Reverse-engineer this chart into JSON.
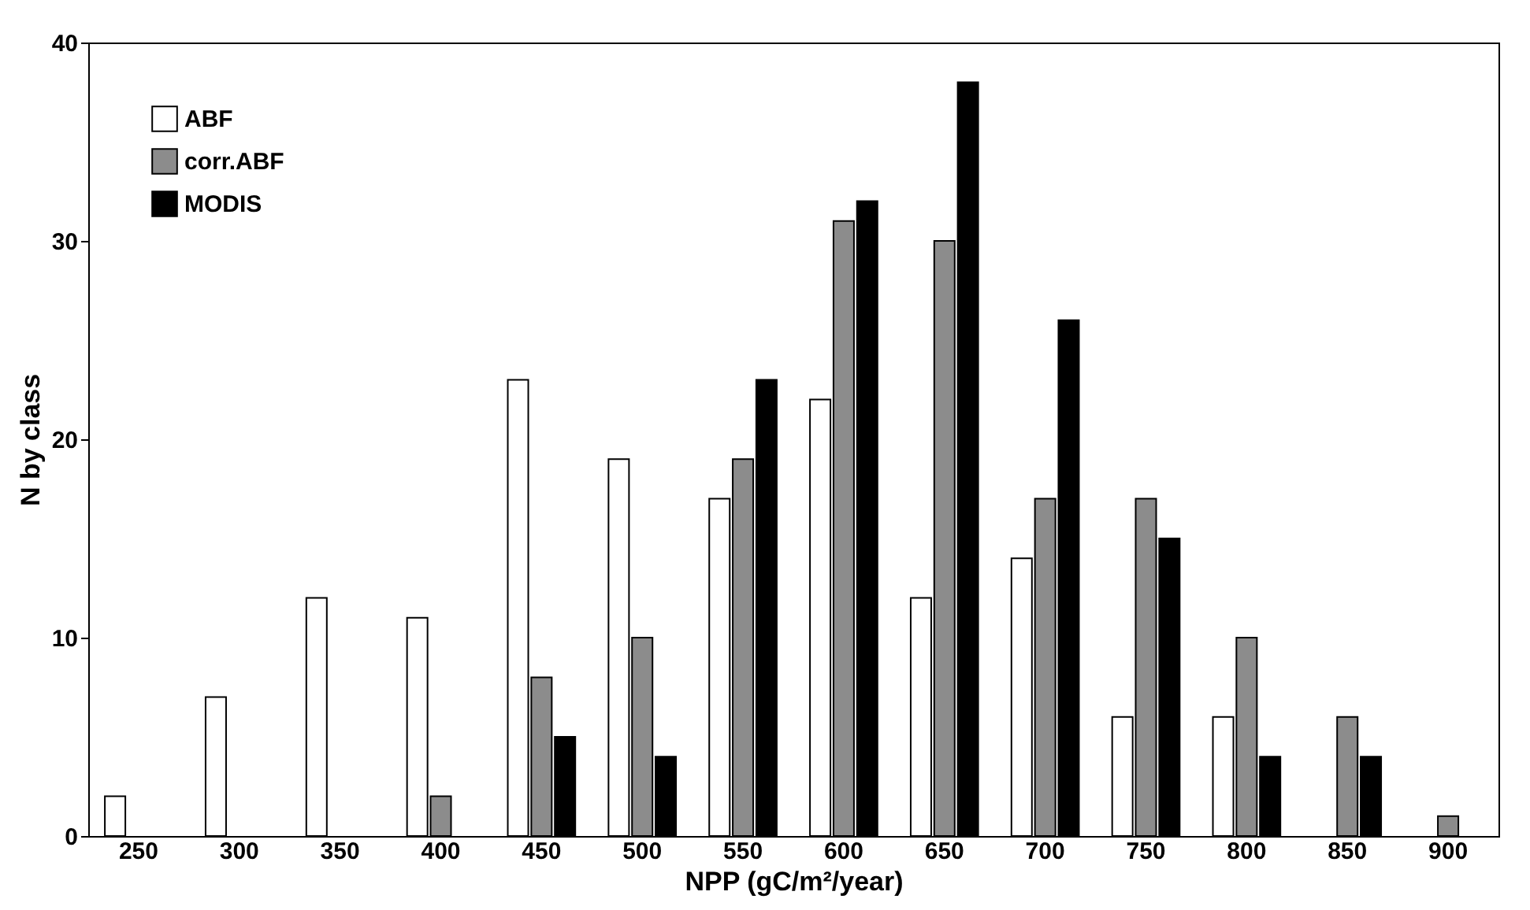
{
  "chart_data": {
    "type": "bar",
    "xlabel": "NPP (gC/m²/year)",
    "ylabel": "N by class",
    "categories": [
      "250",
      "300",
      "350",
      "400",
      "450",
      "500",
      "550",
      "600",
      "650",
      "700",
      "750",
      "800",
      "850",
      "900"
    ],
    "series": [
      {
        "name": "ABF",
        "color": "#ffffff",
        "values": [
          2,
          7,
          12,
          11,
          23,
          19,
          17,
          22,
          12,
          14,
          6,
          6,
          null,
          null
        ]
      },
      {
        "name": "corr.ABF",
        "color": "#8c8c8c",
        "values": [
          null,
          null,
          null,
          2,
          8,
          10,
          19,
          31,
          30,
          17,
          17,
          10,
          6,
          1
        ]
      },
      {
        "name": "MODIS",
        "color": "#000000",
        "values": [
          null,
          null,
          null,
          null,
          5,
          4,
          23,
          32,
          38,
          26,
          15,
          4,
          4,
          null
        ]
      }
    ],
    "ylim": [
      0,
      40
    ],
    "yticks": [
      0,
      10,
      20,
      30,
      40
    ],
    "grid": false,
    "legend": "top left"
  }
}
